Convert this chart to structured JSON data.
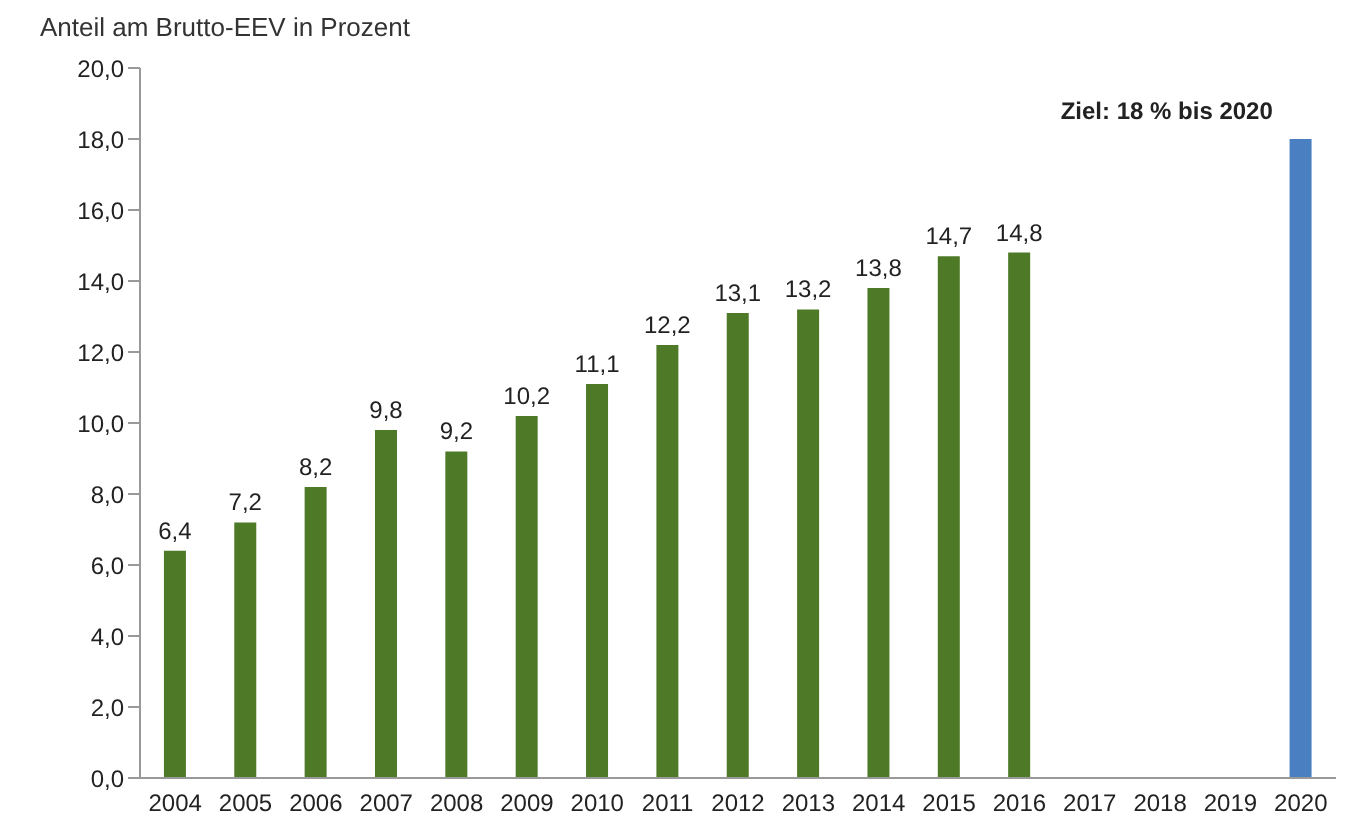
{
  "chart_data": {
    "type": "bar",
    "ylabel": "Anteil am Brutto-EEV in Prozent",
    "categories": [
      "2004",
      "2005",
      "2006",
      "2007",
      "2008",
      "2009",
      "2010",
      "2011",
      "2012",
      "2013",
      "2014",
      "2015",
      "2016",
      "2017",
      "2018",
      "2019",
      "2020"
    ],
    "values": [
      6.4,
      7.2,
      8.2,
      9.8,
      9.2,
      10.2,
      11.1,
      12.2,
      13.1,
      13.2,
      13.8,
      14.7,
      14.8,
      null,
      null,
      null,
      18
    ],
    "colors": [
      "#4e7a27",
      "#4e7a27",
      "#4e7a27",
      "#4e7a27",
      "#4e7a27",
      "#4e7a27",
      "#4e7a27",
      "#4e7a27",
      "#4e7a27",
      "#4e7a27",
      "#4e7a27",
      "#4e7a27",
      "#4e7a27",
      "#4e7a27",
      "#4e7a27",
      "#4e7a27",
      "#4a7fc1"
    ],
    "value_labels": [
      "6,4",
      "7,2",
      "8,2",
      "9,8",
      "9,2",
      "10,2",
      "11,1",
      "12,2",
      "13,1",
      "13,2",
      "13,8",
      "14,7",
      "14,8",
      null,
      null,
      null,
      null
    ],
    "ylim": [
      0,
      20
    ],
    "yticks": [
      {
        "value": 0,
        "label": "0,0"
      },
      {
        "value": 2,
        "label": "2,0"
      },
      {
        "value": 4,
        "label": "4,0"
      },
      {
        "value": 6,
        "label": "6,0"
      },
      {
        "value": 8,
        "label": "8,0"
      },
      {
        "value": 10,
        "label": "10,0"
      },
      {
        "value": 12,
        "label": "12,0"
      },
      {
        "value": 14,
        "label": "14,0"
      },
      {
        "value": 16,
        "label": "16,0"
      },
      {
        "value": 18,
        "label": "18,0"
      },
      {
        "value": 20,
        "label": "20,0"
      }
    ],
    "grid": false,
    "legend": false,
    "annotations": [
      {
        "text": "Ziel: 18 % bis 2020",
        "x": "2020",
        "y": 18
      }
    ]
  }
}
